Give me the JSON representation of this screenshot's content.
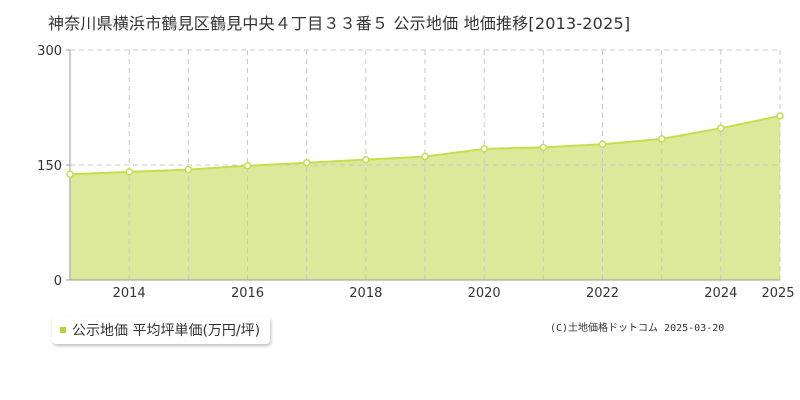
{
  "chart_data": {
    "type": "area",
    "title": "神奈川県横浜市鶴見区鶴見中央４丁目３３番５ 公示地価 地価推移[2013-2025]",
    "x": [
      2013,
      2014,
      2015,
      2016,
      2017,
      2018,
      2019,
      2020,
      2021,
      2022,
      2023,
      2024,
      2025
    ],
    "x_tick_labels": [
      "2014",
      "2016",
      "2018",
      "2020",
      "2022",
      "2024",
      "2025"
    ],
    "y_ticks": [
      "0",
      "150",
      "300"
    ],
    "ylim": [
      0,
      300
    ],
    "xlim": [
      2013,
      2025
    ],
    "grid": true,
    "legend_placement": "bottom-left",
    "series": [
      {
        "name": "公示地価 平均坪単価(万円/坪)",
        "values": [
          138,
          141,
          144,
          149,
          153,
          157,
          161,
          171,
          173,
          177,
          184,
          198,
          214
        ]
      }
    ]
  },
  "legend": {
    "label": "公示地価 平均坪単価(万円/坪)"
  },
  "credit": "(C)土地価格ドットコム 2025-03-20",
  "colors": {
    "area_fill": "#dde99a",
    "line": "#c4df4c",
    "marker_fill": "#ffffff",
    "grid": "#c8c8c8",
    "axis": "#999999",
    "legend_swatch": "#b5d334"
  }
}
